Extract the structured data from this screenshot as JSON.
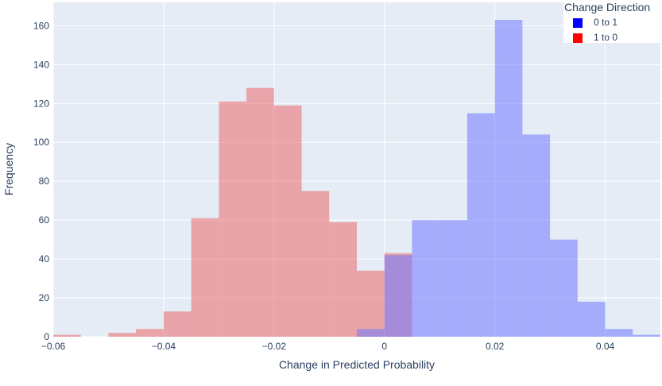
{
  "chart_data": {
    "type": "histogram",
    "title": "",
    "xlabel": "Change in Predicted Probability",
    "ylabel": "Frequency",
    "xlim": [
      -0.06,
      0.05
    ],
    "ylim": [
      0,
      172
    ],
    "bin_width": 0.005,
    "x_ticks": [
      {
        "value": -0.06,
        "label": "−0.06"
      },
      {
        "value": -0.04,
        "label": "−0.04"
      },
      {
        "value": -0.02,
        "label": "−0.02"
      },
      {
        "value": 0,
        "label": "0"
      },
      {
        "value": 0.02,
        "label": "0.02"
      },
      {
        "value": 0.04,
        "label": "0.04"
      }
    ],
    "y_ticks": [
      {
        "value": 0,
        "label": "0"
      },
      {
        "value": 20,
        "label": "20"
      },
      {
        "value": 40,
        "label": "40"
      },
      {
        "value": 60,
        "label": "60"
      },
      {
        "value": 80,
        "label": "80"
      },
      {
        "value": 100,
        "label": "100"
      },
      {
        "value": 120,
        "label": "120"
      },
      {
        "value": 140,
        "label": "140"
      },
      {
        "value": 160,
        "label": "160"
      }
    ],
    "grid": true,
    "barmode": "overlay",
    "legend": {
      "title": "Change Direction",
      "position": "top-right"
    },
    "series": [
      {
        "name": "1 to 0",
        "color": "#ff0000",
        "fill_color": "rgba(235,91,91,0.5)",
        "bins": [
          {
            "x0": -0.06,
            "x1": -0.055,
            "count": 1
          },
          {
            "x0": -0.055,
            "x1": -0.05,
            "count": 0
          },
          {
            "x0": -0.05,
            "x1": -0.045,
            "count": 2
          },
          {
            "x0": -0.045,
            "x1": -0.04,
            "count": 4
          },
          {
            "x0": -0.04,
            "x1": -0.035,
            "count": 13
          },
          {
            "x0": -0.035,
            "x1": -0.03,
            "count": 61
          },
          {
            "x0": -0.03,
            "x1": -0.025,
            "count": 121
          },
          {
            "x0": -0.025,
            "x1": -0.02,
            "count": 128
          },
          {
            "x0": -0.02,
            "x1": -0.015,
            "count": 119
          },
          {
            "x0": -0.015,
            "x1": -0.01,
            "count": 75
          },
          {
            "x0": -0.01,
            "x1": -0.005,
            "count": 59
          },
          {
            "x0": -0.005,
            "x1": 0,
            "count": 34
          },
          {
            "x0": 0,
            "x1": 0.005,
            "count": 43
          }
        ]
      },
      {
        "name": "0 to 1",
        "color": "#0000ff",
        "fill_color": "rgba(111,120,255,0.55)",
        "bins": [
          {
            "x0": -0.005,
            "x1": 0,
            "count": 4
          },
          {
            "x0": 0,
            "x1": 0.005,
            "count": 42
          },
          {
            "x0": 0.005,
            "x1": 0.01,
            "count": 60
          },
          {
            "x0": 0.01,
            "x1": 0.015,
            "count": 60
          },
          {
            "x0": 0.015,
            "x1": 0.02,
            "count": 115
          },
          {
            "x0": 0.02,
            "x1": 0.025,
            "count": 163
          },
          {
            "x0": 0.025,
            "x1": 0.03,
            "count": 104
          },
          {
            "x0": 0.03,
            "x1": 0.035,
            "count": 50
          },
          {
            "x0": 0.035,
            "x1": 0.04,
            "count": 18
          },
          {
            "x0": 0.04,
            "x1": 0.045,
            "count": 4
          },
          {
            "x0": 0.045,
            "x1": 0.05,
            "count": 1
          }
        ]
      }
    ],
    "legend_order": [
      "0 to 1",
      "1 to 0"
    ]
  },
  "colors": {
    "plot_background": "#e5ecf6",
    "gridline": "#ffffff",
    "text": "#2a3f5f"
  }
}
